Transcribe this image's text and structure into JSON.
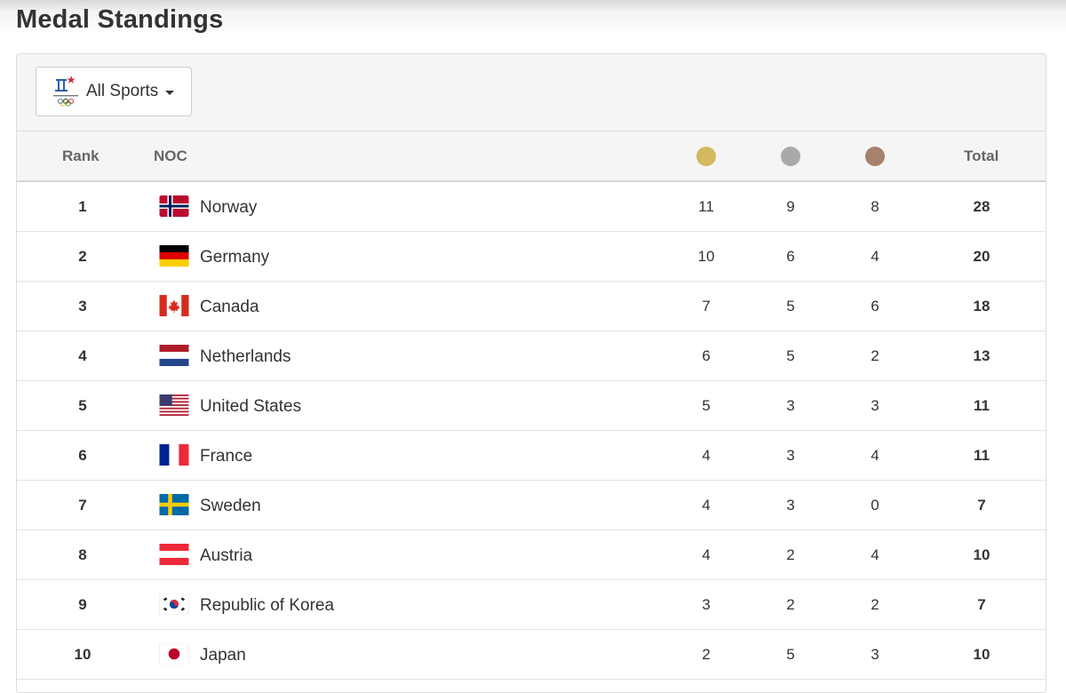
{
  "page": {
    "title": "Medal Standings"
  },
  "filter": {
    "label": "All Sports",
    "emblem_icon": "pyeongchang-2018-emblem-icon"
  },
  "table": {
    "headers": {
      "rank": "Rank",
      "noc": "NOC",
      "total": "Total"
    },
    "medal_colors": {
      "gold": "#d4b95e",
      "silver": "#a9a9a9",
      "bronze": "#a6826d"
    },
    "rows": [
      {
        "rank": "1",
        "country": "Norway",
        "flag": "norway-flag-icon",
        "gold": "11",
        "silver": "9",
        "bronze": "8",
        "total": "28"
      },
      {
        "rank": "2",
        "country": "Germany",
        "flag": "germany-flag-icon",
        "gold": "10",
        "silver": "6",
        "bronze": "4",
        "total": "20"
      },
      {
        "rank": "3",
        "country": "Canada",
        "flag": "canada-flag-icon",
        "gold": "7",
        "silver": "5",
        "bronze": "6",
        "total": "18"
      },
      {
        "rank": "4",
        "country": "Netherlands",
        "flag": "netherlands-flag-icon",
        "gold": "6",
        "silver": "5",
        "bronze": "2",
        "total": "13"
      },
      {
        "rank": "5",
        "country": "United States",
        "flag": "united-states-flag-icon",
        "gold": "5",
        "silver": "3",
        "bronze": "3",
        "total": "11"
      },
      {
        "rank": "6",
        "country": "France",
        "flag": "france-flag-icon",
        "gold": "4",
        "silver": "3",
        "bronze": "4",
        "total": "11"
      },
      {
        "rank": "7",
        "country": "Sweden",
        "flag": "sweden-flag-icon",
        "gold": "4",
        "silver": "3",
        "bronze": "0",
        "total": "7"
      },
      {
        "rank": "8",
        "country": "Austria",
        "flag": "austria-flag-icon",
        "gold": "4",
        "silver": "2",
        "bronze": "4",
        "total": "10"
      },
      {
        "rank": "9",
        "country": "Republic of Korea",
        "flag": "korea-flag-icon",
        "gold": "3",
        "silver": "2",
        "bronze": "2",
        "total": "7"
      },
      {
        "rank": "10",
        "country": "Japan",
        "flag": "japan-flag-icon",
        "gold": "2",
        "silver": "5",
        "bronze": "3",
        "total": "10"
      }
    ]
  }
}
